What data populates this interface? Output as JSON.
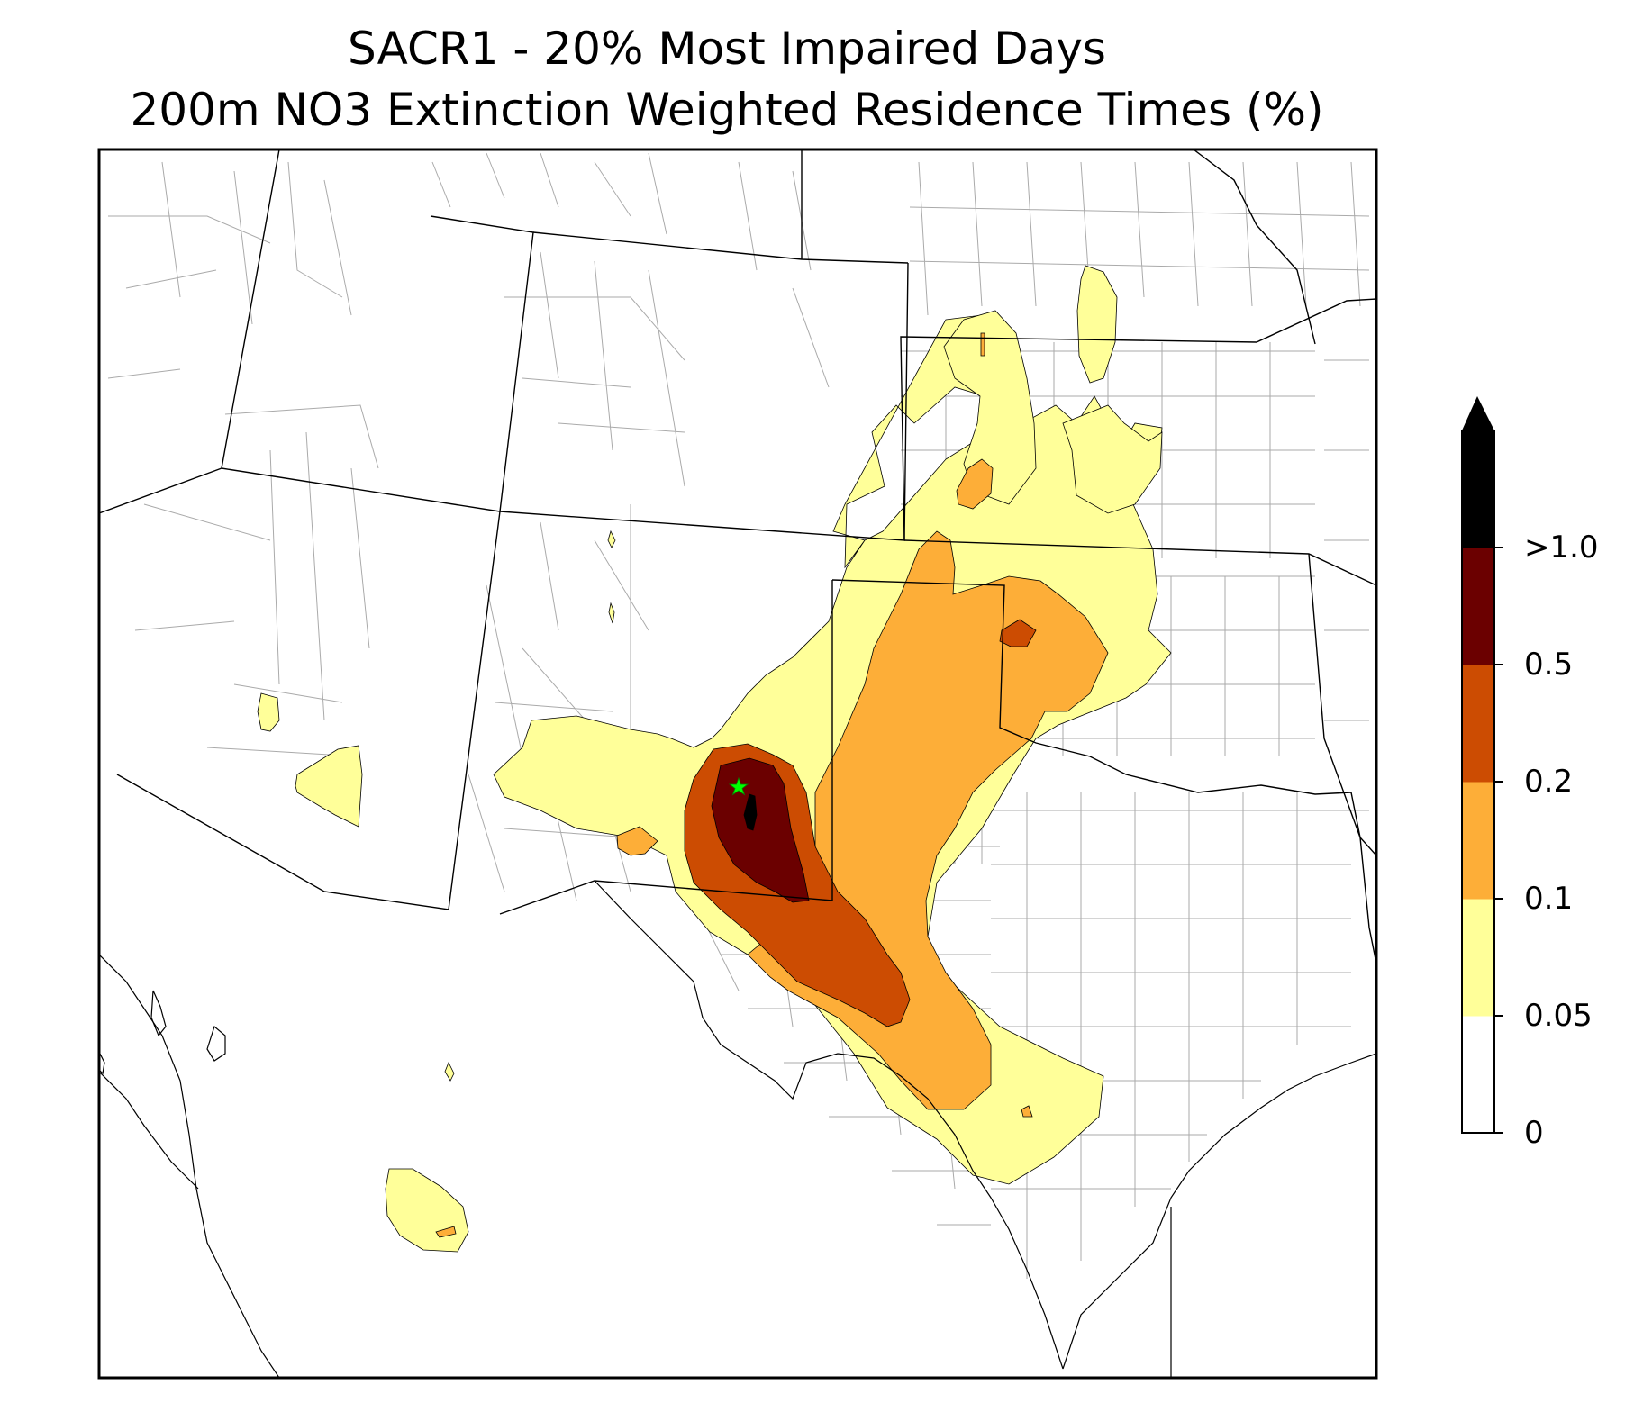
{
  "title": {
    "line1": "SACR1 - 20% Most Impaired Days",
    "line2": "200m NO3 Extinction Weighted Residence Times (%)"
  },
  "colorbar": {
    "levels": [
      {
        "label": "0",
        "value": 0
      },
      {
        "label": "0.05",
        "value": 0.05
      },
      {
        "label": "0.1",
        "value": 0.1
      },
      {
        "label": "0.2",
        "value": 0.2
      },
      {
        "label": "0.5",
        "value": 0.5
      },
      {
        "label": ">1.0",
        "value": 1.0
      }
    ],
    "colors": [
      "#ffffff",
      "#ffff99",
      "#fdae38",
      "#cc4c02",
      "#6b0000",
      "#000000"
    ],
    "extend": "max"
  },
  "map": {
    "region": "Southwestern United States and northern Mexico",
    "layers": [
      "state-borders",
      "county-borders",
      "coastline",
      "residence-time-contours"
    ],
    "site_marker": {
      "symbol": "star",
      "color": "#00ff00"
    }
  }
}
